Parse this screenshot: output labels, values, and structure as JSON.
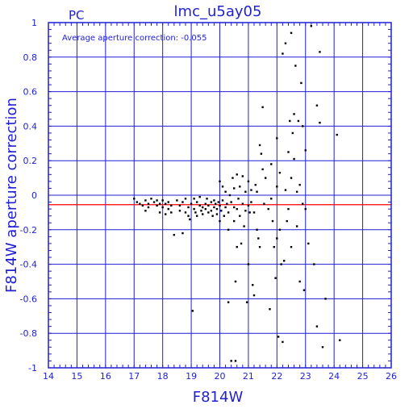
{
  "chart_data": {
    "type": "scatter",
    "title": "lmc_u5ay05",
    "corner_label": "PC",
    "annotation": "Average aperture correction: -0.055",
    "xlabel": "F814W",
    "ylabel": "F814W aperture correction",
    "xlim": [
      14,
      26
    ],
    "ylim": [
      -1,
      1
    ],
    "x_ticks": [
      "14",
      "15",
      "16",
      "17",
      "18",
      "19",
      "20",
      "21",
      "22",
      "23",
      "24",
      "25",
      "26"
    ],
    "y_ticks": [
      "-1",
      "-0.8",
      "-0.6",
      "-0.4",
      "-0.2",
      "0",
      "0.2",
      "0.4",
      "0.6",
      "0.8",
      "1"
    ],
    "grid": true,
    "reference_line": {
      "y": -0.055,
      "color": "#ff0000"
    },
    "colors": {
      "axes": "#1f1fd6",
      "points": "#000000"
    },
    "points": [
      [
        17.0,
        -0.02
      ],
      [
        17.1,
        -0.04
      ],
      [
        17.2,
        -0.05
      ],
      [
        17.3,
        -0.06
      ],
      [
        17.4,
        -0.03
      ],
      [
        17.4,
        -0.09
      ],
      [
        17.5,
        -0.05
      ],
      [
        17.5,
        -0.07
      ],
      [
        17.6,
        -0.02
      ],
      [
        17.7,
        -0.04
      ],
      [
        17.8,
        -0.03
      ],
      [
        17.8,
        -0.06
      ],
      [
        17.9,
        -0.05
      ],
      [
        17.9,
        -0.1
      ],
      [
        18.0,
        -0.03
      ],
      [
        18.0,
        -0.07
      ],
      [
        18.1,
        -0.05
      ],
      [
        18.1,
        -0.11
      ],
      [
        18.2,
        -0.04
      ],
      [
        18.2,
        -0.08
      ],
      [
        18.3,
        -0.06
      ],
      [
        18.3,
        -0.1
      ],
      [
        18.4,
        -0.23
      ],
      [
        18.5,
        -0.03
      ],
      [
        18.6,
        -0.06
      ],
      [
        18.6,
        -0.09
      ],
      [
        18.7,
        -0.22
      ],
      [
        18.7,
        -0.04
      ],
      [
        18.8,
        -0.1
      ],
      [
        18.8,
        -0.02
      ],
      [
        18.9,
        -0.07
      ],
      [
        18.9,
        -0.12
      ],
      [
        18.95,
        -0.14
      ],
      [
        19.0,
        -0.05
      ],
      [
        19.05,
        -0.67
      ],
      [
        19.1,
        -0.02
      ],
      [
        19.1,
        -0.08
      ],
      [
        19.15,
        -0.1
      ],
      [
        19.2,
        -0.12
      ],
      [
        19.2,
        -0.04
      ],
      [
        19.3,
        -0.06
      ],
      [
        19.3,
        -0.01
      ],
      [
        19.35,
        -0.09
      ],
      [
        19.4,
        -0.07
      ],
      [
        19.4,
        -0.11
      ],
      [
        19.5,
        -0.05
      ],
      [
        19.5,
        -0.08
      ],
      [
        19.55,
        -0.02
      ],
      [
        19.6,
        -0.1
      ],
      [
        19.6,
        -0.06
      ],
      [
        19.7,
        -0.04
      ],
      [
        19.7,
        -0.09
      ],
      [
        19.75,
        -0.12
      ],
      [
        19.8,
        -0.07
      ],
      [
        19.8,
        -0.03
      ],
      [
        19.85,
        -0.05
      ],
      [
        19.9,
        -0.08
      ],
      [
        19.9,
        -0.11
      ],
      [
        19.95,
        -0.04
      ],
      [
        20.0,
        -0.15
      ],
      [
        20.0,
        -0.06
      ],
      [
        20.0,
        0.08
      ],
      [
        20.05,
        -0.09
      ],
      [
        20.1,
        -0.03
      ],
      [
        20.1,
        0.05
      ],
      [
        20.15,
        -0.12
      ],
      [
        20.2,
        -0.07
      ],
      [
        20.2,
        0.02
      ],
      [
        20.25,
        -0.05
      ],
      [
        20.3,
        -0.62
      ],
      [
        20.3,
        -0.1
      ],
      [
        20.3,
        -0.2
      ],
      [
        20.35,
        0.0
      ],
      [
        20.4,
        -0.04
      ],
      [
        20.4,
        -0.96
      ],
      [
        20.45,
        0.1
      ],
      [
        20.5,
        -0.07
      ],
      [
        20.5,
        -0.15
      ],
      [
        20.5,
        0.04
      ],
      [
        20.55,
        -0.5
      ],
      [
        20.55,
        -0.96
      ],
      [
        20.6,
        -0.3
      ],
      [
        20.6,
        -0.08
      ],
      [
        20.6,
        0.12
      ],
      [
        20.65,
        -0.02
      ],
      [
        20.7,
        -0.12
      ],
      [
        20.7,
        0.05
      ],
      [
        20.75,
        -0.28
      ],
      [
        20.8,
        -0.05
      ],
      [
        20.8,
        0.11
      ],
      [
        20.85,
        -0.18
      ],
      [
        20.9,
        -0.09
      ],
      [
        20.9,
        0.02
      ],
      [
        20.95,
        -0.62
      ],
      [
        21.0,
        -0.4
      ],
      [
        21.0,
        -0.06
      ],
      [
        21.0,
        0.08
      ],
      [
        21.05,
        -0.1
      ],
      [
        21.1,
        0.03
      ],
      [
        21.1,
        -0.04
      ],
      [
        21.15,
        -0.52
      ],
      [
        21.2,
        -0.58
      ],
      [
        21.2,
        -0.1
      ],
      [
        21.25,
        0.06
      ],
      [
        21.3,
        -0.2
      ],
      [
        21.3,
        0.02
      ],
      [
        21.35,
        -0.25
      ],
      [
        21.4,
        -0.3
      ],
      [
        21.4,
        0.29
      ],
      [
        21.45,
        0.24
      ],
      [
        21.5,
        0.51
      ],
      [
        21.5,
        0.15
      ],
      [
        21.55,
        -0.05
      ],
      [
        21.6,
        0.1
      ],
      [
        21.7,
        -0.08
      ],
      [
        21.75,
        -0.66
      ],
      [
        21.8,
        -0.02
      ],
      [
        21.8,
        0.18
      ],
      [
        21.85,
        -0.15
      ],
      [
        21.9,
        -0.3
      ],
      [
        21.95,
        -0.48
      ],
      [
        22.0,
        0.33
      ],
      [
        22.0,
        -0.25
      ],
      [
        22.0,
        0.05
      ],
      [
        22.05,
        -0.82
      ],
      [
        22.1,
        -0.2
      ],
      [
        22.1,
        0.13
      ],
      [
        22.15,
        -0.4
      ],
      [
        22.2,
        -0.85
      ],
      [
        22.2,
        0.82
      ],
      [
        22.25,
        -0.38
      ],
      [
        22.3,
        0.88
      ],
      [
        22.3,
        0.03
      ],
      [
        22.35,
        -0.15
      ],
      [
        22.4,
        0.25
      ],
      [
        22.4,
        -0.08
      ],
      [
        22.45,
        0.43
      ],
      [
        22.5,
        0.94
      ],
      [
        22.5,
        -0.3
      ],
      [
        22.5,
        0.1
      ],
      [
        22.55,
        0.36
      ],
      [
        22.6,
        0.47
      ],
      [
        22.6,
        0.21
      ],
      [
        22.65,
        0.75
      ],
      [
        22.7,
        -0.18
      ],
      [
        22.7,
        0.02
      ],
      [
        22.75,
        0.43
      ],
      [
        22.8,
        -0.5
      ],
      [
        22.8,
        0.06
      ],
      [
        22.85,
        0.65
      ],
      [
        22.9,
        0.4
      ],
      [
        22.9,
        -0.05
      ],
      [
        22.95,
        -0.55
      ],
      [
        23.0,
        0.26
      ],
      [
        23.0,
        -0.08
      ],
      [
        23.1,
        -0.28
      ],
      [
        23.2,
        0.98
      ],
      [
        23.3,
        -0.4
      ],
      [
        23.4,
        0.52
      ],
      [
        23.4,
        -0.76
      ],
      [
        23.5,
        0.83
      ],
      [
        23.5,
        0.42
      ],
      [
        23.6,
        -0.88
      ],
      [
        23.7,
        -0.6
      ],
      [
        24.1,
        0.35
      ],
      [
        24.2,
        -0.84
      ]
    ]
  }
}
